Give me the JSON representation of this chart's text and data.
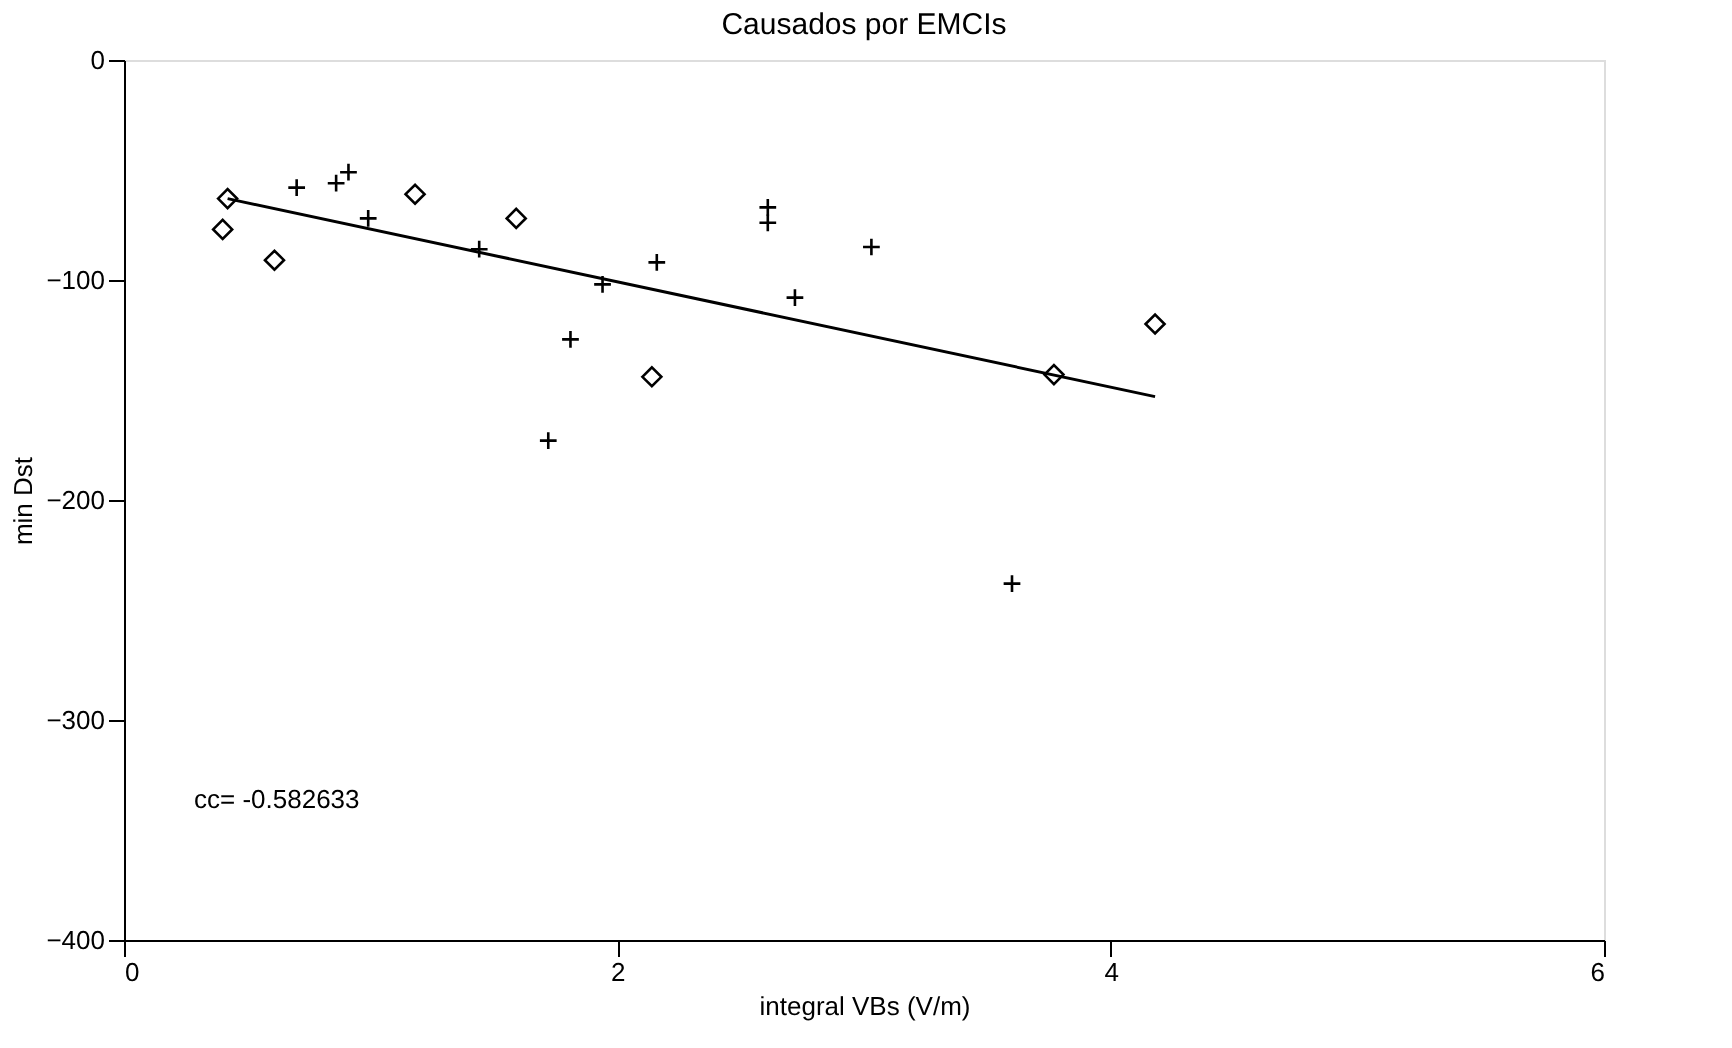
{
  "chart_data": {
    "type": "scatter",
    "title": "Causados por EMCIs",
    "xlabel": "integral VBs (V/m)",
    "ylabel": "min Dst",
    "xlim": [
      0,
      6
    ],
    "xticks": [
      0,
      2,
      4,
      6
    ],
    "ylim": [
      -400,
      0
    ],
    "yticks": [
      -400,
      -300,
      -200,
      -100,
      0
    ],
    "grid": false,
    "annotations": [
      "cc=  -0.582633"
    ],
    "series": [
      {
        "marker": "diamond",
        "color": "#000000",
        "x": [
          0.42,
          0.4,
          0.61,
          1.18,
          1.59,
          2.14,
          3.77,
          4.18
        ],
        "values": [
          -63,
          -77,
          -91,
          -61,
          -72,
          -144,
          -143,
          -120
        ]
      },
      {
        "marker": "cross",
        "color": "#000000",
        "x": [
          0.7,
          0.86,
          0.91,
          0.99,
          1.44,
          1.94,
          1.81,
          1.72,
          2.16,
          2.61,
          2.61,
          2.72,
          3.03,
          3.6
        ],
        "values": [
          -58,
          -56,
          -51,
          -72,
          -86,
          -102,
          -127,
          -173,
          -92,
          -67,
          -74,
          -108,
          -85,
          -238
        ]
      },
      {
        "type": "line",
        "marker": "none",
        "line_style": "solid",
        "color": "#000000",
        "x": [
          0.42,
          4.18
        ],
        "values": [
          -63,
          -153
        ]
      }
    ]
  }
}
